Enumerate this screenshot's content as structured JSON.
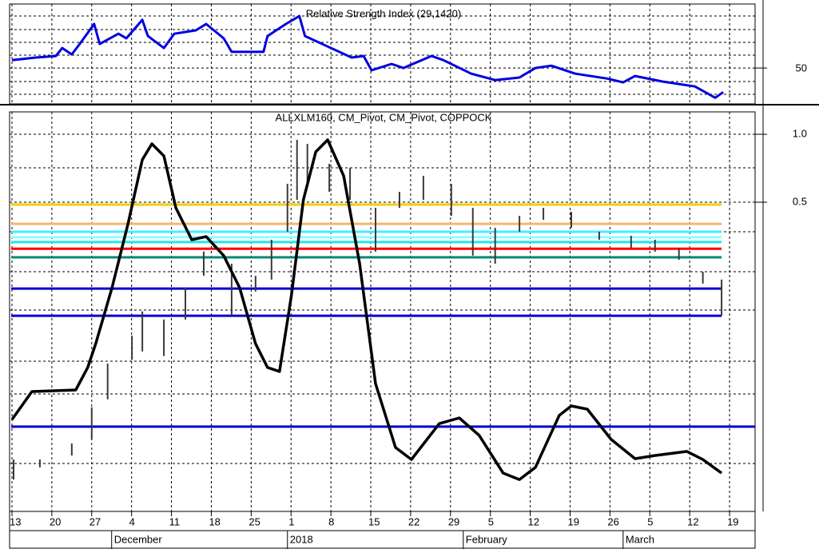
{
  "chart_data": [
    {
      "type": "line",
      "title": "Relative Strength Index (29,1420)",
      "x": [
        0,
        0.6,
        1.1,
        1.26,
        1.5,
        1.7,
        2.06,
        2.2,
        2.67,
        2.87,
        3.27,
        3.41,
        3.81,
        4.07,
        4.61,
        4.87,
        5.31,
        5.51,
        6.31,
        6.41,
        6.87,
        7.21,
        7.35,
        7.92,
        8.52,
        8.82,
        9.02,
        9.52,
        9.82,
        10.52,
        10.82,
        11.52,
        12.12,
        12.73,
        13.13,
        13.53,
        14.13,
        14.93,
        15.33,
        15.63,
        16.33,
        17.13,
        17.64,
        17.84
      ],
      "series": [
        {
          "color": "#0000e0",
          "values": [
            53.1,
            54.1,
            54.7,
            57.8,
            55.3,
            59.4,
            67.2,
            59.4,
            63.4,
            61.6,
            68.8,
            62.5,
            57.8,
            63.4,
            64.7,
            67.2,
            61.6,
            56.3,
            56.3,
            62.5,
            67.2,
            70.3,
            62.5,
            58.4,
            54.1,
            54.7,
            49.1,
            51.6,
            50.0,
            54.7,
            53.1,
            47.8,
            45.3,
            46.3,
            50.0,
            50.9,
            47.8,
            45.9,
            44.4,
            46.9,
            44.7,
            42.8,
            38.4,
            40.6
          ]
        }
      ],
      "xlim": [
        -0.06,
        18.64
      ],
      "ylim": [
        36,
        75
      ],
      "yticks": [
        50
      ],
      "grid": true
    },
    {
      "type": "hilo",
      "title": "ALLXLM160, CM_Pivot, CM_Pivot, COPPOCK",
      "log_scale": true,
      "grid": true,
      "xlim": [
        -0.06,
        18.64
      ],
      "ylim": [
        0.0213,
        1.257
      ],
      "yticks": [
        {
          "value": 1,
          "label": "1.0"
        },
        0.5
      ],
      "xticks": [
        {
          "value": 0,
          "label": "13"
        },
        {
          "value": 1,
          "label": "20"
        },
        {
          "value": 2,
          "label": "27"
        },
        {
          "value": 3,
          "label": "4"
        },
        {
          "value": 4,
          "label": "11"
        },
        {
          "value": 5,
          "label": "18"
        },
        {
          "value": 6,
          "label": "25"
        },
        {
          "value": 7,
          "label": "1"
        },
        {
          "value": 8,
          "label": "8"
        },
        {
          "value": 9,
          "label": "15"
        },
        {
          "value": 10,
          "label": "22"
        },
        {
          "value": 11,
          "label": "29"
        },
        {
          "value": 12,
          "label": "5"
        },
        {
          "value": 13,
          "label": "12"
        },
        {
          "value": 14,
          "label": "19"
        },
        {
          "value": 15,
          "label": "26"
        },
        {
          "value": 16,
          "label": "5"
        },
        {
          "value": 17,
          "label": "12"
        },
        {
          "value": 18,
          "label": "19"
        }
      ],
      "month_labels": [
        {
          "value": 2.5,
          "label": "December"
        },
        {
          "value": 6.91,
          "label": "2018"
        },
        {
          "value": 11.32,
          "label": "February"
        },
        {
          "value": 15.33,
          "label": "March"
        }
      ],
      "bars": {
        "color": "#3a3a3a",
        "x": [
          0.04,
          0.7,
          1.5,
          2.0,
          2.4,
          3.01,
          3.27,
          3.81,
          4.35,
          4.81,
          5.51,
          6.11,
          6.51,
          6.91,
          7.15,
          7.41,
          7.96,
          8.48,
          9.12,
          9.72,
          10.32,
          11.02,
          11.56,
          12.12,
          12.73,
          13.33,
          14.03,
          14.73,
          15.53,
          16.13,
          16.73,
          17.33,
          17.8
        ],
        "high": [
          0.0362,
          0.0362,
          0.0426,
          0.0616,
          0.0963,
          0.128,
          0.164,
          0.151,
          0.209,
          0.302,
          0.267,
          0.236,
          0.341,
          0.603,
          0.945,
          0.907,
          0.74,
          0.71,
          0.472,
          0.556,
          0.654,
          0.603,
          0.472,
          0.385,
          0.435,
          0.472,
          0.453,
          0.37,
          0.355,
          0.341,
          0.314,
          0.246,
          0.227
        ],
        "low": [
          0.0295,
          0.0334,
          0.0377,
          0.0444,
          0.0669,
          0.1,
          0.109,
          0.104,
          0.151,
          0.236,
          0.157,
          0.201,
          0.227,
          0.37,
          0.512,
          0.603,
          0.556,
          0.512,
          0.302,
          0.472,
          0.512,
          0.435,
          0.29,
          0.267,
          0.37,
          0.418,
          0.385,
          0.341,
          0.314,
          0.302,
          0.278,
          0.218,
          0.157
        ]
      },
      "levels": [
        {
          "value": 0.488,
          "color": "#f5cc00",
          "end": 17.8
        },
        {
          "value": 0.401,
          "color": "#f0b870",
          "end": 17.8
        },
        {
          "value": 0.37,
          "color": "#40f0ff",
          "end": 17.8
        },
        {
          "value": 0.35,
          "color": "#90ffff",
          "end": 17.8
        },
        {
          "value": 0.333,
          "color": "#20e8e8",
          "end": 17.8
        },
        {
          "value": 0.311,
          "color": "#ff0000",
          "end": 17.8
        },
        {
          "value": 0.285,
          "color": "#008878",
          "end": 17.8
        },
        {
          "value": 0.207,
          "color": "#0000cc",
          "end": 17.8
        },
        {
          "value": 0.157,
          "color": "#0000cc",
          "end": 17.8
        },
        {
          "value": 0.0506,
          "color": "#0000cc",
          "end": 18.64
        }
      ],
      "series": [
        {
          "color": "#000000",
          "x": [
            0,
            0.5,
            1.6,
            1.9,
            2.1,
            2.51,
            2.91,
            3.27,
            3.51,
            3.81,
            4.11,
            4.51,
            4.87,
            5.31,
            5.71,
            6.11,
            6.41,
            6.71,
            7.01,
            7.31,
            7.62,
            7.92,
            8.32,
            8.72,
            9.12,
            9.62,
            10.02,
            10.72,
            11.22,
            11.72,
            12.32,
            12.73,
            13.13,
            13.73,
            14.03,
            14.43,
            15.03,
            15.63,
            16.13,
            16.93,
            17.33,
            17.8
          ],
          "values": [
            0.0544,
            0.0724,
            0.0736,
            0.0926,
            0.118,
            0.209,
            0.401,
            0.771,
            0.907,
            0.802,
            0.472,
            0.341,
            0.352,
            0.29,
            0.209,
            0.118,
            0.0926,
            0.0888,
            0.193,
            0.512,
            0.836,
            0.945,
            0.654,
            0.267,
            0.0785,
            0.0409,
            0.0362,
            0.0522,
            0.0553,
            0.0463,
            0.0315,
            0.0295,
            0.0334,
            0.0568,
            0.0625,
            0.0605,
            0.0444,
            0.0365,
            0.0377,
            0.0393,
            0.0362,
            0.0315
          ]
        }
      ]
    }
  ]
}
